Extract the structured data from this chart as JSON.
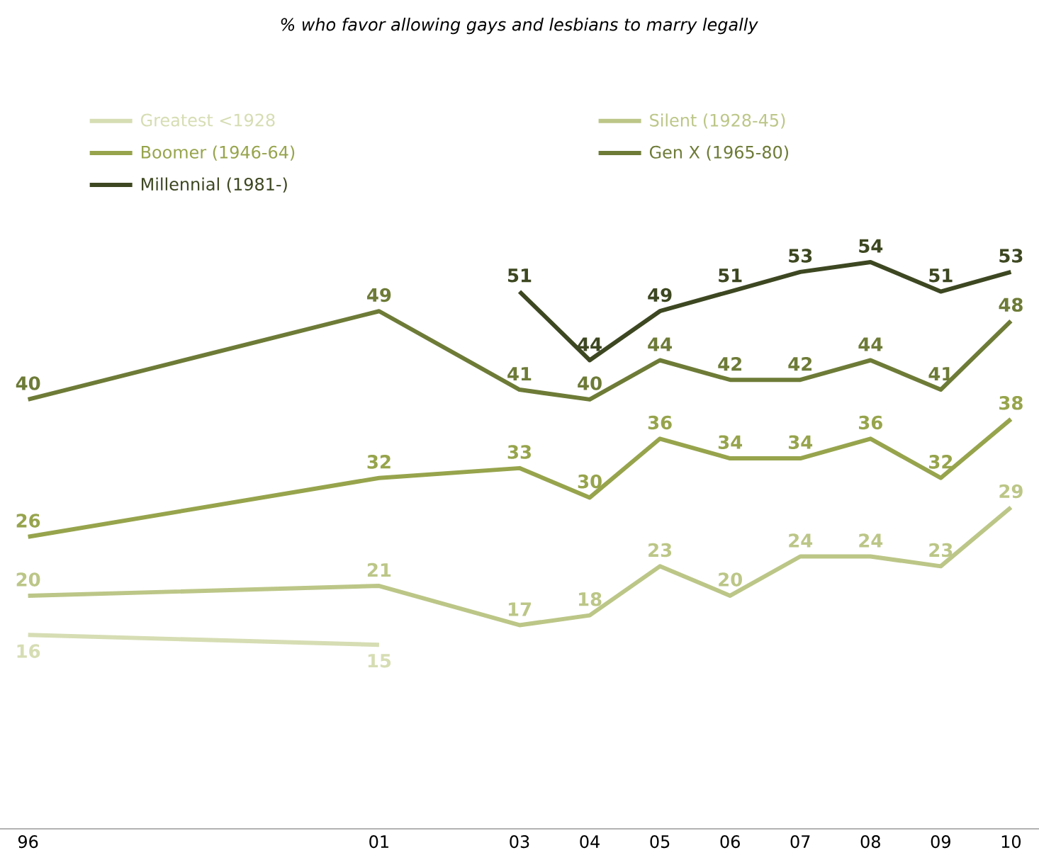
{
  "chart_data": {
    "type": "line",
    "title": "% who favor allowing gays and lesbians to marry legally",
    "x": [
      1996,
      2001,
      2003,
      2004,
      2005,
      2006,
      2007,
      2008,
      2009,
      2010
    ],
    "xlim": [
      1995.6,
      2010.4
    ],
    "xticks": [
      {
        "value": 1996,
        "label": "96"
      },
      {
        "value": 2001,
        "label": "01"
      },
      {
        "value": 2003,
        "label": "03"
      },
      {
        "value": 2004,
        "label": "04"
      },
      {
        "value": 2005,
        "label": "05"
      },
      {
        "value": 2006,
        "label": "06"
      },
      {
        "value": 2007,
        "label": "07"
      },
      {
        "value": 2008,
        "label": "08"
      },
      {
        "value": 2009,
        "label": "09"
      },
      {
        "value": 2010,
        "label": "10"
      }
    ],
    "tick_labels": "x",
    "legend": "top left",
    "data_labels": true,
    "line_style": "solid",
    "series": [
      {
        "name": "Greatest <1928",
        "color": "#d6ddb3",
        "values": [
          16,
          15,
          null,
          null,
          null,
          null,
          null,
          null,
          null,
          null
        ]
      },
      {
        "name": "Silent (1928-45)",
        "color": "#bcc687",
        "values": [
          20,
          21,
          17,
          18,
          23,
          20,
          24,
          24,
          23,
          29
        ]
      },
      {
        "name": "Boomer (1946-64)",
        "color": "#97a44c",
        "values": [
          26,
          32,
          33,
          30,
          36,
          34,
          34,
          36,
          32,
          38
        ]
      },
      {
        "name": "Gen X (1965-80)",
        "color": "#6d7b37",
        "values": [
          40,
          49,
          41,
          40,
          44,
          42,
          42,
          44,
          41,
          48
        ]
      },
      {
        "name": "Millennial (1981-)",
        "color": "#3d4721",
        "values": [
          null,
          null,
          51,
          44,
          49,
          51,
          53,
          54,
          51,
          53
        ]
      }
    ]
  }
}
